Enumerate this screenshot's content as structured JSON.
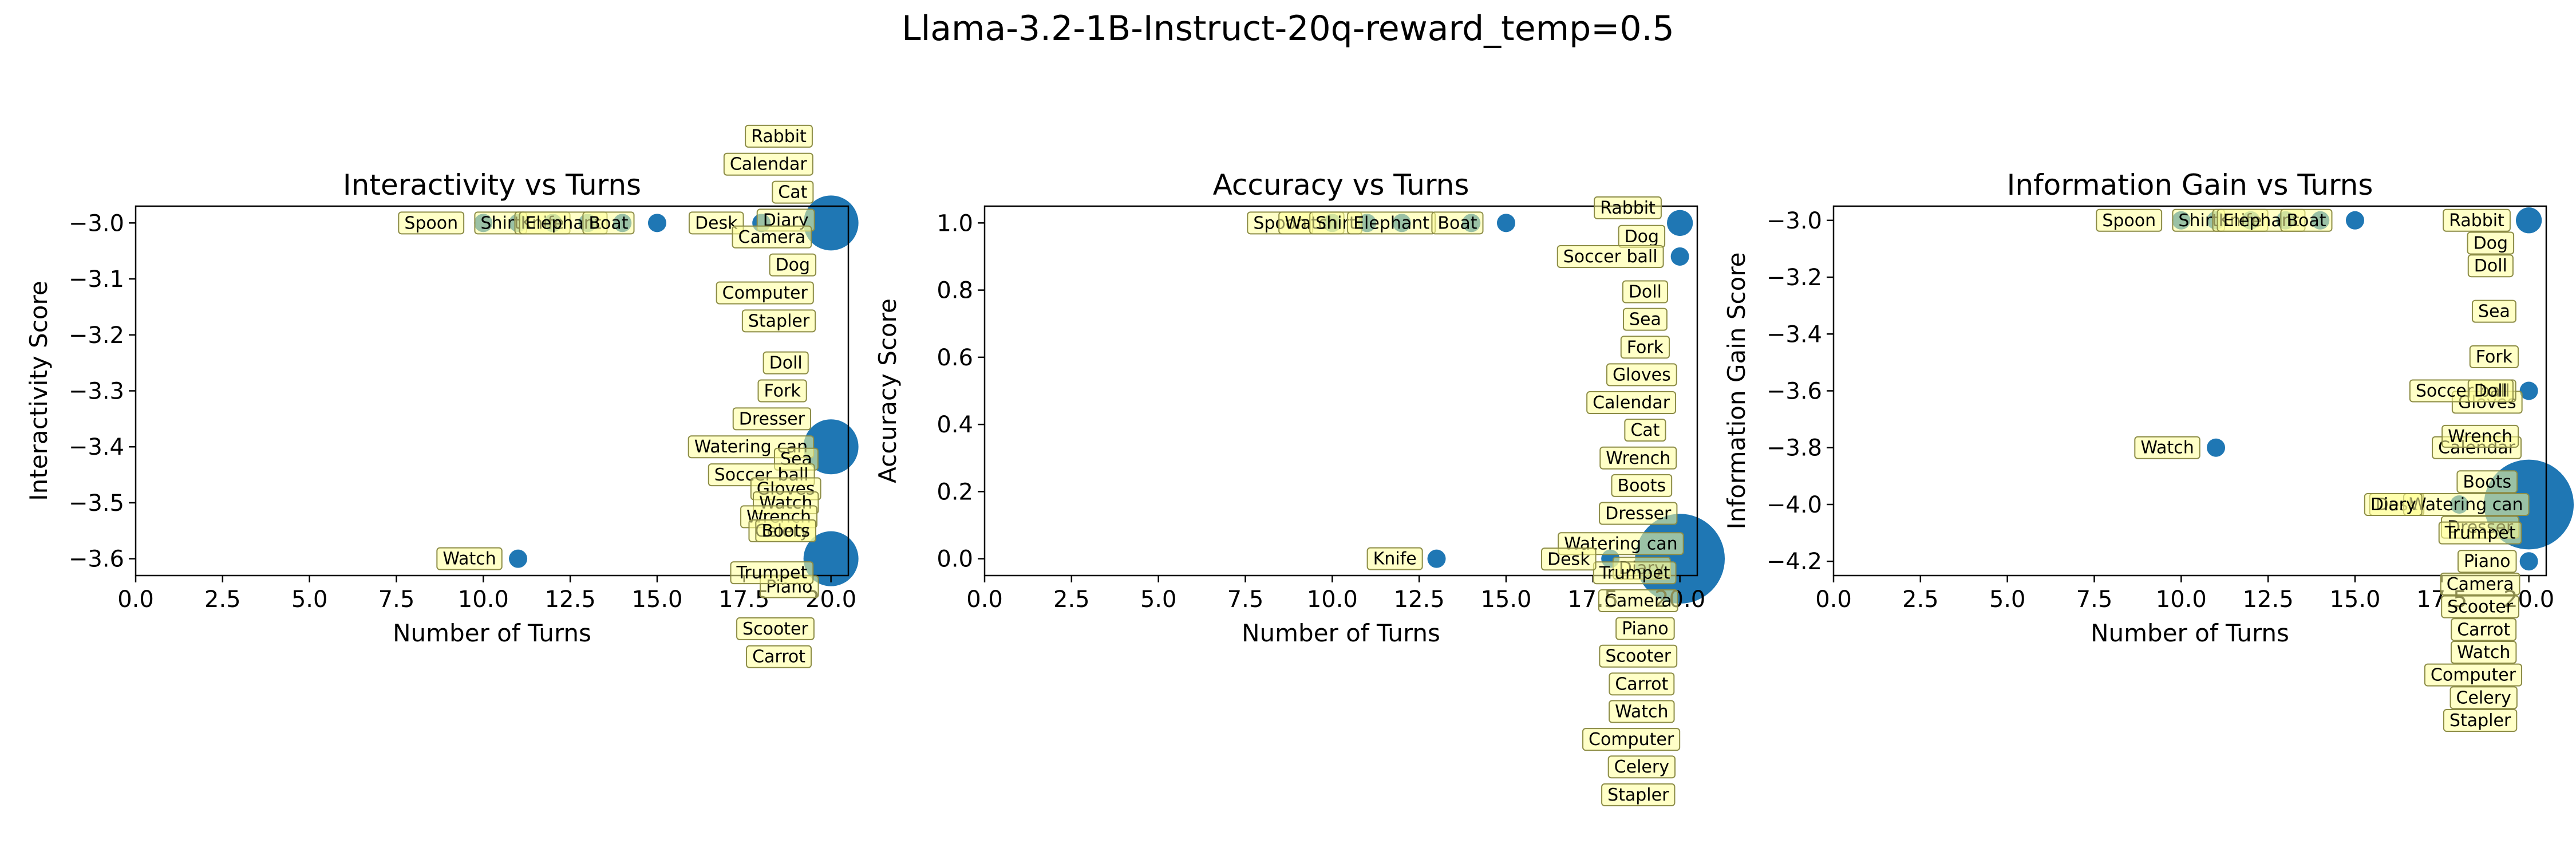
{
  "suptitle": "Llama-3.2-1B-Instruct-20q-reward_temp=0.5",
  "colors": {
    "point": "#1f77b4",
    "annotation_fill": "#ffff99",
    "annotation_edge": "#8c8c46",
    "axes": "#000000"
  },
  "chart_data": [
    {
      "type": "scatter",
      "title": "Interactivity vs Turns",
      "xlabel": "Number of Turns",
      "ylabel": "Interactivity Score",
      "xlim": [
        0,
        20.5
      ],
      "ylim": [
        -3.63,
        -2.97
      ],
      "xticks": [
        "0.0",
        "2.5",
        "5.0",
        "7.5",
        "10.0",
        "12.5",
        "15.0",
        "17.5",
        "20.0"
      ],
      "xtick_values": [
        0,
        2.5,
        5,
        7.5,
        10,
        12.5,
        15,
        17.5,
        20
      ],
      "yticks": [
        "−3.6",
        "−3.5",
        "−3.4",
        "−3.3",
        "−3.2",
        "−3.1",
        "−3.0"
      ],
      "ytick_values": [
        -3.6,
        -3.5,
        -3.4,
        -3.3,
        -3.2,
        -3.1,
        -3.0
      ],
      "grid": false,
      "points": [
        {
          "x": 10,
          "y": -3.0,
          "n": 1
        },
        {
          "x": 11,
          "y": -3.0,
          "n": 1
        },
        {
          "x": 12,
          "y": -3.0,
          "n": 1
        },
        {
          "x": 13,
          "y": -3.0,
          "n": 1
        },
        {
          "x": 14,
          "y": -3.0,
          "n": 1
        },
        {
          "x": 15,
          "y": -3.0,
          "n": 1
        },
        {
          "x": 18,
          "y": -3.0,
          "n": 1
        },
        {
          "x": 20,
          "y": -3.0,
          "n": 9
        },
        {
          "x": 20,
          "y": -3.4,
          "n": 9
        },
        {
          "x": 20,
          "y": -3.6,
          "n": 9
        },
        {
          "x": 11,
          "y": -3.6,
          "n": 1
        }
      ],
      "annotations": [
        {
          "text": "Spoon",
          "x": 10,
          "y": -3.0,
          "dx": -1.5,
          "dy": 0
        },
        {
          "text": "Shirt",
          "x": 11,
          "y": -3.0,
          "dx": -0.5,
          "dy": 0
        },
        {
          "text": "Knife",
          "x": 12,
          "y": -3.0,
          "dx": -0.3,
          "dy": 0
        },
        {
          "text": "Elephant",
          "x": 13,
          "y": -3.0,
          "dx": -0.7,
          "dy": 0
        },
        {
          "text": "Boat",
          "x": 14,
          "y": -3.0,
          "dx": -0.4,
          "dy": 0
        },
        {
          "text": "Desk",
          "x": 18,
          "y": -3.0,
          "dx": -1.3,
          "dy": 0
        },
        {
          "text": "Rabbit",
          "x": 20,
          "y": -3.0,
          "dx": -1.5,
          "dy": 0.155
        },
        {
          "text": "Calendar",
          "x": 20,
          "y": -3.0,
          "dx": -1.8,
          "dy": 0.105
        },
        {
          "text": "Cat",
          "x": 20,
          "y": -3.0,
          "dx": -1.1,
          "dy": 0.055
        },
        {
          "text": "Diary",
          "x": 20,
          "y": -3.0,
          "dx": -1.3,
          "dy": 0.005
        },
        {
          "text": "Camera",
          "x": 20,
          "y": -3.0,
          "dx": -1.7,
          "dy": -0.025
        },
        {
          "text": "Dog",
          "x": 20,
          "y": -3.0,
          "dx": -1.1,
          "dy": -0.075
        },
        {
          "text": "Computer",
          "x": 20,
          "y": -3.0,
          "dx": -1.9,
          "dy": -0.125
        },
        {
          "text": "Stapler",
          "x": 20,
          "y": -3.0,
          "dx": -1.5,
          "dy": -0.175
        },
        {
          "text": "Doll",
          "x": 20,
          "y": -3.4,
          "dx": -1.3,
          "dy": 0.15
        },
        {
          "text": "Fork",
          "x": 20,
          "y": -3.4,
          "dx": -1.4,
          "dy": 0.1
        },
        {
          "text": "Dresser",
          "x": 20,
          "y": -3.4,
          "dx": -1.7,
          "dy": 0.05
        },
        {
          "text": "Watering can",
          "x": 20,
          "y": -3.4,
          "dx": -2.3,
          "dy": 0.0
        },
        {
          "text": "Sea",
          "x": 20,
          "y": -3.4,
          "dx": -1.0,
          "dy": -0.022
        },
        {
          "text": "Soccer ball",
          "x": 20,
          "y": -3.4,
          "dx": -2.0,
          "dy": -0.05
        },
        {
          "text": "Gloves",
          "x": 20,
          "y": -3.4,
          "dx": -1.3,
          "dy": -0.075
        },
        {
          "text": "Watch",
          "x": 20,
          "y": -3.4,
          "dx": -1.3,
          "dy": -0.1
        },
        {
          "text": "Wrench",
          "x": 20,
          "y": -3.4,
          "dx": -1.5,
          "dy": -0.125
        },
        {
          "text": "Celery",
          "x": 20,
          "y": -3.4,
          "dx": -1.4,
          "dy": -0.15
        },
        {
          "text": "Boots",
          "x": 20,
          "y": -3.6,
          "dx": -1.3,
          "dy": 0.05
        },
        {
          "text": "Piano",
          "x": 20,
          "y": -3.6,
          "dx": -1.2,
          "dy": -0.05
        },
        {
          "text": "Trumpet",
          "x": 20,
          "y": -3.6,
          "dx": -1.7,
          "dy": -0.025
        },
        {
          "text": "Scooter",
          "x": 20,
          "y": -3.6,
          "dx": -1.6,
          "dy": -0.125
        },
        {
          "text": "Carrot",
          "x": 20,
          "y": -3.6,
          "dx": -1.5,
          "dy": -0.175
        },
        {
          "text": "Watch",
          "x": 11,
          "y": -3.6,
          "dx": -1.4,
          "dy": 0
        }
      ]
    },
    {
      "type": "scatter",
      "title": "Accuracy vs Turns",
      "xlabel": "Number of Turns",
      "ylabel": "Accuracy Score",
      "xlim": [
        0,
        20.5
      ],
      "ylim": [
        -0.05,
        1.05
      ],
      "xticks": [
        "0.0",
        "2.5",
        "5.0",
        "7.5",
        "10.0",
        "12.5",
        "15.0",
        "17.5",
        "20.0"
      ],
      "xtick_values": [
        0,
        2.5,
        5,
        7.5,
        10,
        12.5,
        15,
        17.5,
        20
      ],
      "yticks": [
        "0.0",
        "0.2",
        "0.4",
        "0.6",
        "0.8",
        "1.0"
      ],
      "ytick_values": [
        0,
        0.2,
        0.4,
        0.6,
        0.8,
        1.0
      ],
      "grid": false,
      "points": [
        {
          "x": 10,
          "y": 1.0,
          "n": 1
        },
        {
          "x": 11,
          "y": 1.0,
          "n": 1
        },
        {
          "x": 12,
          "y": 1.0,
          "n": 1
        },
        {
          "x": 14,
          "y": 1.0,
          "n": 1
        },
        {
          "x": 15,
          "y": 1.0,
          "n": 1
        },
        {
          "x": 20,
          "y": 1.0,
          "n": 2
        },
        {
          "x": 20,
          "y": 0.9,
          "n": 1
        },
        {
          "x": 13,
          "y": 0.0,
          "n": 1
        },
        {
          "x": 18,
          "y": 0.0,
          "n": 1
        },
        {
          "x": 20,
          "y": 0.0,
          "n": 24
        }
      ],
      "annotations": [
        {
          "text": "Spoon",
          "x": 10,
          "y": 1.0,
          "dx": -1.5,
          "dy": 0
        },
        {
          "text": "Watch",
          "x": 11,
          "y": 1.0,
          "dx": -1.6,
          "dy": 0
        },
        {
          "text": "Shirt",
          "x": 12,
          "y": 1.0,
          "dx": -1.9,
          "dy": 0
        },
        {
          "text": "Elephant",
          "x": 12,
          "y": 1.0,
          "dx": -0.3,
          "dy": 0
        },
        {
          "text": "Boat",
          "x": 14,
          "y": 1.0,
          "dx": -0.4,
          "dy": 0
        },
        {
          "text": "Rabbit",
          "x": 20,
          "y": 1.0,
          "dx": -1.5,
          "dy": 0.045
        },
        {
          "text": "Dog",
          "x": 20,
          "y": 1.0,
          "dx": -1.1,
          "dy": -0.04
        },
        {
          "text": "Soccer ball",
          "x": 20,
          "y": 0.9,
          "dx": -2.0,
          "dy": 0.0
        },
        {
          "text": "Doll",
          "x": 20,
          "y": 0.0,
          "dx": -1.0,
          "dy": 0.795
        },
        {
          "text": "Sea",
          "x": 20,
          "y": 0.0,
          "dx": -1.0,
          "dy": 0.713
        },
        {
          "text": "Fork",
          "x": 20,
          "y": 0.0,
          "dx": -1.0,
          "dy": 0.63
        },
        {
          "text": "Gloves",
          "x": 20,
          "y": 0.0,
          "dx": -1.1,
          "dy": 0.548
        },
        {
          "text": "Calendar",
          "x": 20,
          "y": 0.0,
          "dx": -1.4,
          "dy": 0.465
        },
        {
          "text": "Cat",
          "x": 20,
          "y": 0.0,
          "dx": -1.0,
          "dy": 0.383
        },
        {
          "text": "Wrench",
          "x": 20,
          "y": 0.0,
          "dx": -1.2,
          "dy": 0.3
        },
        {
          "text": "Boots",
          "x": 20,
          "y": 0.0,
          "dx": -1.1,
          "dy": 0.218
        },
        {
          "text": "Dresser",
          "x": 20,
          "y": 0.0,
          "dx": -1.2,
          "dy": 0.135
        },
        {
          "text": "Watering can",
          "x": 20,
          "y": 0.0,
          "dx": -1.7,
          "dy": 0.045
        },
        {
          "text": "Diary",
          "x": 20,
          "y": 0.0,
          "dx": -1.1,
          "dy": -0.028
        },
        {
          "text": "Trumpet",
          "x": 20,
          "y": 0.0,
          "dx": -1.3,
          "dy": -0.042
        },
        {
          "text": "Camera",
          "x": 20,
          "y": 0.0,
          "dx": -1.2,
          "dy": -0.125
        },
        {
          "text": "Piano",
          "x": 20,
          "y": 0.0,
          "dx": -1.0,
          "dy": -0.208
        },
        {
          "text": "Scooter",
          "x": 20,
          "y": 0.0,
          "dx": -1.2,
          "dy": -0.29
        },
        {
          "text": "Carrot",
          "x": 20,
          "y": 0.0,
          "dx": -1.1,
          "dy": -0.373
        },
        {
          "text": "Watch",
          "x": 20,
          "y": 0.0,
          "dx": -1.1,
          "dy": -0.455
        },
        {
          "text": "Computer",
          "x": 20,
          "y": 0.0,
          "dx": -1.4,
          "dy": -0.538
        },
        {
          "text": "Celery",
          "x": 20,
          "y": 0.0,
          "dx": -1.1,
          "dy": -0.62
        },
        {
          "text": "Stapler",
          "x": 20,
          "y": 0.0,
          "dx": -1.2,
          "dy": -0.703
        },
        {
          "text": "Knife",
          "x": 13,
          "y": 0.0,
          "dx": -1.2,
          "dy": 0
        },
        {
          "text": "Desk",
          "x": 18,
          "y": 0.0,
          "dx": -1.2,
          "dy": -0.001
        }
      ]
    },
    {
      "type": "scatter",
      "title": "Information Gain vs Turns",
      "xlabel": "Number of Turns",
      "ylabel": "Information Gain Score",
      "xlim": [
        0,
        20.5
      ],
      "ylim": [
        -4.25,
        -2.95
      ],
      "xticks": [
        "0.0",
        "2.5",
        "5.0",
        "7.5",
        "10.0",
        "12.5",
        "15.0",
        "17.5",
        "20.0"
      ],
      "xtick_values": [
        0,
        2.5,
        5,
        7.5,
        10,
        12.5,
        15,
        17.5,
        20
      ],
      "yticks": [
        "−4.2",
        "−4.0",
        "−3.8",
        "−3.6",
        "−3.4",
        "−3.2",
        "−3.0"
      ],
      "ytick_values": [
        -4.2,
        -4.0,
        -3.8,
        -3.6,
        -3.4,
        -3.2,
        -3.0
      ],
      "grid": false,
      "points": [
        {
          "x": 10,
          "y": -3.0,
          "n": 1
        },
        {
          "x": 11,
          "y": -3.0,
          "n": 1
        },
        {
          "x": 12,
          "y": -3.0,
          "n": 1
        },
        {
          "x": 13,
          "y": -3.0,
          "n": 1
        },
        {
          "x": 14,
          "y": -3.0,
          "n": 1
        },
        {
          "x": 15,
          "y": -3.0,
          "n": 1
        },
        {
          "x": 20,
          "y": -3.0,
          "n": 2
        },
        {
          "x": 20,
          "y": -3.6,
          "n": 1
        },
        {
          "x": 11,
          "y": -3.8,
          "n": 1
        },
        {
          "x": 18,
          "y": -4.0,
          "n": 1
        },
        {
          "x": 20,
          "y": -4.0,
          "n": 24
        },
        {
          "x": 20,
          "y": -4.2,
          "n": 1
        }
      ],
      "annotations": [
        {
          "text": "Spoon",
          "x": 10,
          "y": -3.0,
          "dx": -1.5,
          "dy": 0
        },
        {
          "text": "Shirt",
          "x": 11,
          "y": -3.0,
          "dx": -0.5,
          "dy": 0
        },
        {
          "text": "Knife",
          "x": 12,
          "y": -3.0,
          "dx": -0.3,
          "dy": 0
        },
        {
          "text": "Elephant",
          "x": 13,
          "y": -3.0,
          "dx": -0.7,
          "dy": 0
        },
        {
          "text": "Boat",
          "x": 14,
          "y": -3.0,
          "dx": -0.4,
          "dy": 0
        },
        {
          "text": "Rabbit",
          "x": 20,
          "y": -3.0,
          "dx": -1.5,
          "dy": 0.0
        },
        {
          "text": "Dog",
          "x": 20,
          "y": -3.0,
          "dx": -1.1,
          "dy": -0.08
        },
        {
          "text": "Doll",
          "x": 20,
          "y": -3.0,
          "dx": -1.1,
          "dy": -0.16
        },
        {
          "text": "Sea",
          "x": 20,
          "y": -3.0,
          "dx": -1.0,
          "dy": -0.32
        },
        {
          "text": "Fork",
          "x": 20,
          "y": -3.0,
          "dx": -1.0,
          "dy": -0.48
        },
        {
          "text": "Gloves",
          "x": 20,
          "y": -3.0,
          "dx": -1.2,
          "dy": -0.64
        },
        {
          "text": "Calendar",
          "x": 20,
          "y": -3.0,
          "dx": -1.5,
          "dy": -0.8
        },
        {
          "text": "Soccer ball",
          "x": 20,
          "y": -3.6,
          "dx": -1.9,
          "dy": 0.0
        },
        {
          "text": "Doll",
          "x": 20,
          "y": -3.6,
          "dx": -1.1,
          "dy": 0.0
        },
        {
          "text": "Wrench",
          "x": 20,
          "y": -3.6,
          "dx": -1.4,
          "dy": -0.16
        },
        {
          "text": "Boots",
          "x": 20,
          "y": -3.6,
          "dx": -1.2,
          "dy": -0.32
        },
        {
          "text": "Dresser",
          "x": 20,
          "y": -3.6,
          "dx": -1.4,
          "dy": -0.48
        },
        {
          "text": "Desk",
          "x": 18,
          "y": -4.0,
          "dx": -1.8,
          "dy": 0.0
        },
        {
          "text": "Watering can",
          "x": 20,
          "y": -4.0,
          "dx": -1.8,
          "dy": 0.0
        },
        {
          "text": "Diary",
          "x": 18,
          "y": -4.0,
          "dx": -1.9,
          "dy": 0.0
        },
        {
          "text": "Trumpet",
          "x": 20,
          "y": -4.0,
          "dx": -1.4,
          "dy": -0.1
        },
        {
          "text": "Piano",
          "x": 20,
          "y": -4.2,
          "dx": -1.2,
          "dy": 0.0
        },
        {
          "text": "Camera",
          "x": 20,
          "y": -4.2,
          "dx": -1.4,
          "dy": -0.08
        },
        {
          "text": "Scooter",
          "x": 20,
          "y": -4.2,
          "dx": -1.4,
          "dy": -0.16
        },
        {
          "text": "Carrot",
          "x": 20,
          "y": -4.2,
          "dx": -1.3,
          "dy": -0.24
        },
        {
          "text": "Watch",
          "x": 20,
          "y": -4.2,
          "dx": -1.3,
          "dy": -0.32
        },
        {
          "text": "Computer",
          "x": 20,
          "y": -4.2,
          "dx": -1.6,
          "dy": -0.4
        },
        {
          "text": "Celery",
          "x": 20,
          "y": -4.2,
          "dx": -1.3,
          "dy": -0.48
        },
        {
          "text": "Stapler",
          "x": 20,
          "y": -4.2,
          "dx": -1.4,
          "dy": -0.56
        },
        {
          "text": "Watch",
          "x": 11,
          "y": -3.8,
          "dx": -1.4,
          "dy": 0
        }
      ]
    }
  ]
}
